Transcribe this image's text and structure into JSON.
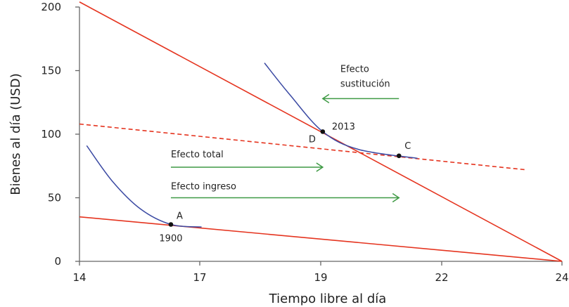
{
  "chart_data": {
    "type": "line",
    "xlabel": "Tiempo libre al día",
    "ylabel": "Bienes al día (USD)",
    "x_ticks": [
      14,
      17,
      19,
      22,
      24
    ],
    "y_ticks": [
      0,
      50,
      100,
      150,
      200
    ],
    "xlim": [
      14,
      24
    ],
    "ylim": [
      0,
      200
    ],
    "grid": false,
    "colors": {
      "budget": "#e5341f",
      "indifference": "#3b4aa3",
      "arrow": "#3f9a45",
      "axis": "#666666",
      "point": "#111111"
    },
    "budget_lines": [
      {
        "style": "solid",
        "points": [
          [
            14,
            204
          ],
          [
            24,
            0
          ]
        ]
      },
      {
        "style": "solid",
        "points": [
          [
            14,
            35
          ],
          [
            24,
            0
          ]
        ]
      },
      {
        "style": "dashed",
        "points": [
          [
            14,
            108
          ],
          [
            23.4,
            72
          ]
        ]
      }
    ],
    "indifference_curves": [
      {
        "points": [
          [
            14.18,
            91
          ],
          [
            14.82,
            63
          ],
          [
            15.53,
            41
          ],
          [
            16.28,
            29
          ],
          [
            17.03,
            27
          ]
        ]
      },
      {
        "points": [
          [
            18.07,
            156
          ],
          [
            18.49,
            131
          ],
          [
            19.05,
            102
          ],
          [
            19.94,
            88
          ],
          [
            21.4,
            81
          ]
        ]
      }
    ],
    "points": [
      {
        "label": "A",
        "year": "1900",
        "x": 16.28,
        "y": 29
      },
      {
        "label": "D",
        "year": "2013",
        "x": 19.05,
        "y": 102
      },
      {
        "label": "C",
        "year": "",
        "x": 20.94,
        "y": 83
      }
    ],
    "arrows": [
      {
        "label": [
          "Efecto",
          "sustitución"
        ],
        "from": [
          20.94,
          128
        ],
        "to": [
          19.05,
          128
        ]
      },
      {
        "label": [
          "Efecto total"
        ],
        "from": [
          16.28,
          74
        ],
        "to": [
          19.05,
          74
        ]
      },
      {
        "label": [
          "Efecto ingreso"
        ],
        "from": [
          16.28,
          50
        ],
        "to": [
          20.94,
          50
        ]
      }
    ]
  }
}
